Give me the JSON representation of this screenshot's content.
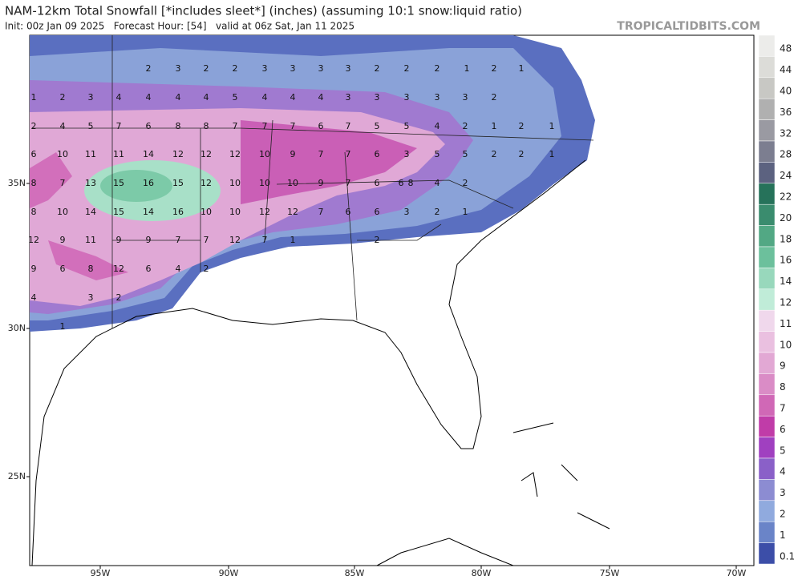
{
  "header": {
    "title": "NAM-12km Total Snowfall [*includes sleet*] (inches) (assuming 10:1 snow:liquid ratio)",
    "subtitle": "Init: 00z Jan 09 2025   Forecast Hour: [54]   valid at 06z Sat, Jan 11 2025",
    "site": "TROPICALTIDBITS.COM"
  },
  "map": {
    "rows": [
      [
        "2",
        "3",
        "2",
        "2",
        "3",
        "3",
        "3",
        "3",
        "2",
        "2",
        "2",
        "1",
        "2",
        "1"
      ],
      [
        "1",
        "2",
        "3",
        "4",
        "4",
        "4",
        "4",
        "5",
        "4",
        "4",
        "4",
        "3",
        "3",
        "3",
        "3",
        "3",
        "2"
      ],
      [
        "2",
        "4",
        "5",
        "7",
        "6",
        "8",
        "8",
        "7",
        "7",
        "7",
        "6",
        "7",
        "5",
        "5",
        "4",
        "2",
        "1",
        "2",
        "1"
      ],
      [
        "6",
        "10",
        "11",
        "11",
        "14",
        "12",
        "12",
        "12",
        "10",
        "9",
        "7",
        "7",
        "6",
        "3",
        "5",
        "5",
        "2",
        "2",
        "1"
      ],
      [
        "8",
        "7",
        "13",
        "15",
        "16",
        "15",
        "12",
        "10",
        "10",
        "10",
        "9",
        "7",
        "6",
        "6",
        "8",
        "4",
        "2"
      ],
      [
        "8",
        "10",
        "14",
        "15",
        "14",
        "16",
        "10",
        "10",
        "12",
        "12",
        "7",
        "6",
        "6",
        "3",
        "2",
        "1"
      ],
      [
        "12",
        "9",
        "11",
        "9",
        "9",
        "7",
        "7",
        "12",
        "7",
        "1",
        "2"
      ],
      [
        "9",
        "6",
        "8",
        "12",
        "6",
        "4",
        "2"
      ],
      [
        "4",
        "3",
        "2"
      ],
      [
        "1"
      ]
    ]
  },
  "axes": {
    "lon": [
      "95W",
      "90W",
      "85W",
      "80W",
      "75W",
      "70W"
    ],
    "lat": [
      "35N",
      "30N",
      "25N"
    ]
  },
  "colorbar": {
    "labels": [
      "48",
      "44",
      "40",
      "36",
      "32",
      "28",
      "24",
      "22",
      "20",
      "18",
      "16",
      "14",
      "12",
      "11",
      "10",
      "9",
      "8",
      "7",
      "6",
      "5",
      "4",
      "3",
      "2",
      "1",
      "0.1"
    ],
    "colors": [
      "#ececea",
      "#dcdcd8",
      "#c8c8c4",
      "#b0b0b0",
      "#9a9aa2",
      "#7c7e90",
      "#5c6280",
      "#26725a",
      "#3a8c6e",
      "#52a884",
      "#6cc09c",
      "#98d8bc",
      "#c0ecd8",
      "#f0d8ec",
      "#eac0e0",
      "#e2a8d4",
      "#da8cc6",
      "#d068b6",
      "#c03ca8",
      "#a040c0",
      "#8a60c8",
      "#8c8cd2",
      "#90aade",
      "#6a84c8",
      "#3c4ea8"
    ]
  }
}
